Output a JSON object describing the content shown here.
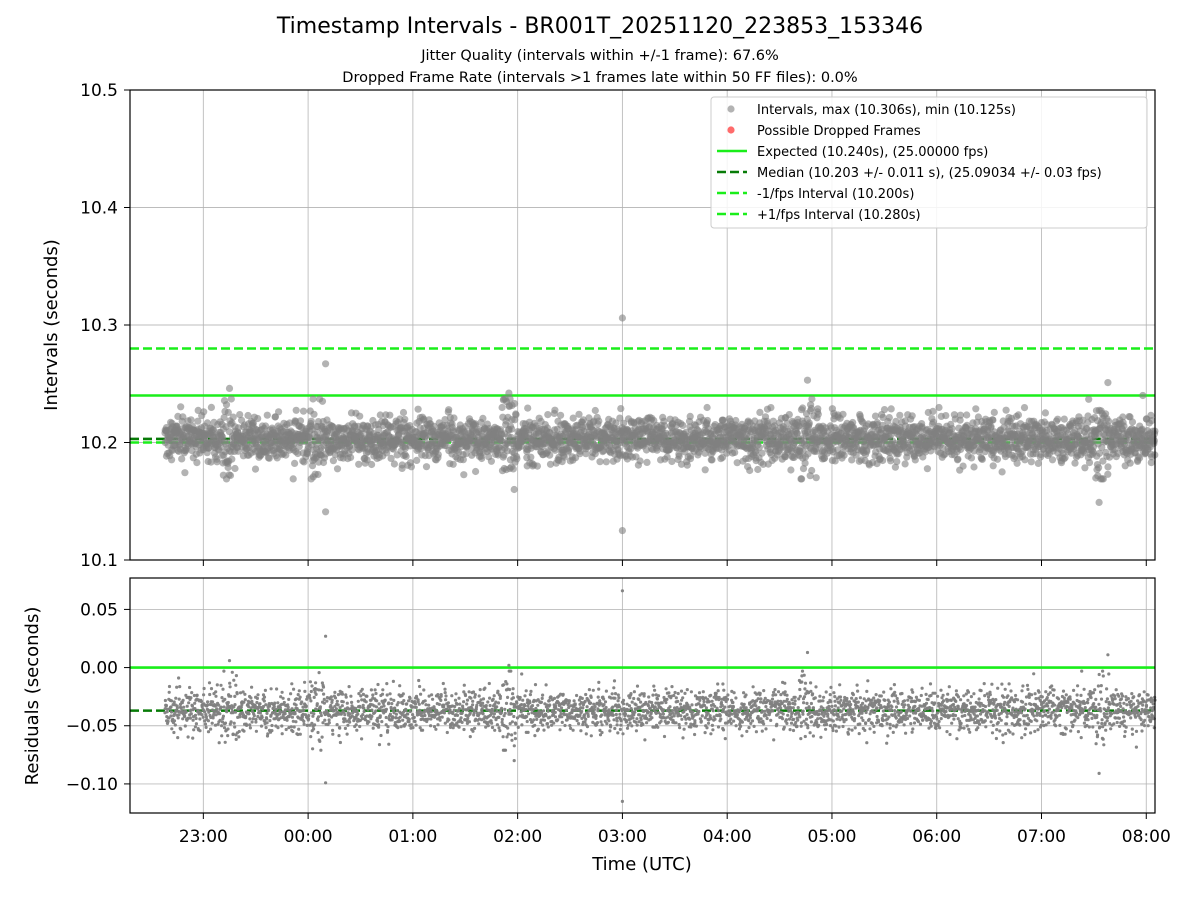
{
  "figure": {
    "title": "Timestamp Intervals - BR001T_20251120_223853_153346",
    "subtitle_1": "Jitter Quality (intervals within +/-1 frame): 67.6%",
    "subtitle_2": "Dropped Frame Rate (intervals >1 frames late within 50 FF files): 0.0%",
    "xlabel": "Time (UTC)"
  },
  "colors": {
    "points": "#808080",
    "dropped": "#ff5b5b",
    "expected": "#1aee1a",
    "median": "#077b07",
    "bounds": "#1aee1a",
    "grid": "#b0b0b0"
  },
  "chart_data": [
    {
      "type": "scatter",
      "panel": "top",
      "ylabel": "Intervals (seconds)",
      "x_range": [
        "22:18",
        "08:05"
      ],
      "ylim": [
        10.1,
        10.5
      ],
      "yticks": [
        "10.1",
        "10.2",
        "10.3",
        "10.4",
        "10.5"
      ],
      "xticks": [
        "23:00",
        "00:00",
        "01:00",
        "02:00",
        "03:00",
        "04:00",
        "05:00",
        "06:00",
        "07:00",
        "08:00"
      ],
      "grid": true,
      "legend_position": "upper-right",
      "legend": [
        "Intervals, max (10.306s), min (10.125s)",
        "Possible Dropped Frames",
        "Expected (10.240s), (25.00000 fps)",
        "Median (10.203 +/- 0.011 s), (25.09034 +/- 0.03 fps)",
        "-1/fps Interval (10.200s)",
        "+1/fps Interval (10.280s)"
      ],
      "series": [
        {
          "name": "Intervals, max (10.306s), min (10.125s)",
          "x_start": "22:38",
          "x_end": "08:05",
          "count": 3400,
          "y_median": 10.203,
          "y_spread": 0.011,
          "y_min": 10.125,
          "y_max": 10.306,
          "x_bursts": [
            "23:15",
            "00:05",
            "01:55",
            "04:45",
            "07:35"
          ],
          "outliers": [
            {
              "x": "03:00",
              "y": 10.306
            },
            {
              "x": "03:00",
              "y": 10.125
            },
            {
              "x": "00:10",
              "y": 10.267
            },
            {
              "x": "00:10",
              "y": 10.141
            },
            {
              "x": "07:33",
              "y": 10.149
            },
            {
              "x": "01:58",
              "y": 10.16
            },
            {
              "x": "04:46",
              "y": 10.253
            },
            {
              "x": "07:38",
              "y": 10.251
            },
            {
              "x": "23:15",
              "y": 10.246
            },
            {
              "x": "01:55",
              "y": 10.242
            },
            {
              "x": "04:51",
              "y": 10.17
            },
            {
              "x": "07:58",
              "y": 10.24
            }
          ]
        },
        {
          "name": "Possible Dropped Frames",
          "points": []
        }
      ],
      "hlines": [
        {
          "name": "Expected (10.240s), (25.00000 fps)",
          "y": 10.24,
          "style": "solid"
        },
        {
          "name": "Median (10.203 +/- 0.011 s), (25.09034 +/- 0.03 fps)",
          "y": 10.203,
          "style": "dashed"
        },
        {
          "name": "-1/fps Interval (10.200s)",
          "y": 10.2,
          "style": "dashed"
        },
        {
          "name": "+1/fps Interval (10.280s)",
          "y": 10.28,
          "style": "dashed"
        }
      ]
    },
    {
      "type": "scatter",
      "panel": "bottom",
      "ylabel": "Residuals (seconds)",
      "xlabel": "Time (UTC)",
      "x_range": [
        "22:18",
        "08:05"
      ],
      "ylim": [
        -0.125,
        0.077
      ],
      "yticks": [
        "−0.10",
        "−0.05",
        "0.00",
        "0.05"
      ],
      "xticks": [
        "23:00",
        "00:00",
        "01:00",
        "02:00",
        "03:00",
        "04:00",
        "05:00",
        "06:00",
        "07:00",
        "08:00"
      ],
      "grid": true,
      "series": [
        {
          "name": "Residuals",
          "x_start": "22:38",
          "x_end": "08:05",
          "count": 3400,
          "y_median": -0.037,
          "y_spread": 0.011,
          "y_min": -0.115,
          "y_max": 0.066,
          "outliers": [
            {
              "x": "03:00",
              "y": 0.066
            },
            {
              "x": "03:00",
              "y": -0.115
            },
            {
              "x": "00:10",
              "y": 0.027
            },
            {
              "x": "00:10",
              "y": -0.099
            },
            {
              "x": "07:33",
              "y": -0.091
            },
            {
              "x": "01:58",
              "y": -0.08
            },
            {
              "x": "04:46",
              "y": 0.013
            },
            {
              "x": "07:38",
              "y": 0.011
            },
            {
              "x": "23:15",
              "y": 0.006
            },
            {
              "x": "01:55",
              "y": 0.002
            }
          ]
        }
      ],
      "hlines": [
        {
          "name": "zero",
          "y": 0.0,
          "style": "solid"
        },
        {
          "name": "median",
          "y": -0.037,
          "style": "dashed"
        }
      ]
    }
  ]
}
